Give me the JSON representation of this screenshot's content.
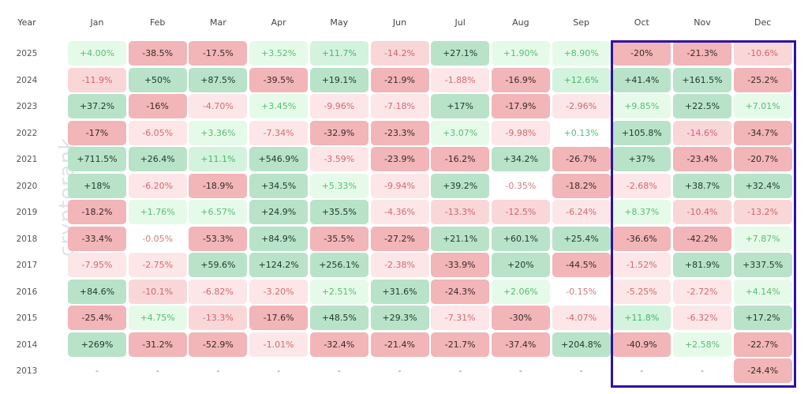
{
  "watermark": "cryptorank",
  "colors": {
    "strong_red": "#f2b5b8",
    "light_red": "#fce6e7",
    "strong_green": "#b8e3c9",
    "light_green": "#e6fae9",
    "highlight": "#2e13a3"
  },
  "chart_data": {
    "type": "heatmap",
    "title": "",
    "row_header": "Year",
    "columns": [
      "Jan",
      "Feb",
      "Mar",
      "Apr",
      "May",
      "Jun",
      "Jul",
      "Aug",
      "Sep",
      "Oct",
      "Nov",
      "Dec"
    ],
    "highlighted_columns": [
      "Oct",
      "Nov",
      "Dec"
    ],
    "rows": [
      {
        "year": "2025",
        "values": [
          "+4.00%",
          "-38.5%",
          "-17.5%",
          "+3.52%",
          "+11.7%",
          "-14.2%",
          "+27.1%",
          "+1.90%",
          "+8.90%",
          "-20%",
          "-21.3%",
          "-10.6%"
        ]
      },
      {
        "year": "2024",
        "values": [
          "-11.9%",
          "+50%",
          "+87.5%",
          "-39.5%",
          "+19.1%",
          "-21.9%",
          "-1.88%",
          "-16.9%",
          "+12.6%",
          "+41.4%",
          "+161.5%",
          "-25.2%"
        ]
      },
      {
        "year": "2023",
        "values": [
          "+37.2%",
          "-16%",
          "-4.70%",
          "+3.45%",
          "-9.96%",
          "-7.18%",
          "+17%",
          "-17.9%",
          "-2.96%",
          "+9.85%",
          "+22.5%",
          "+7.01%"
        ]
      },
      {
        "year": "2022",
        "values": [
          "-17%",
          "-6.05%",
          "+3.36%",
          "-7.34%",
          "-32.9%",
          "-23.3%",
          "+3.07%",
          "-9.98%",
          "+0.13%",
          "+105.8%",
          "-14.6%",
          "-34.7%"
        ]
      },
      {
        "year": "2021",
        "values": [
          "+711.5%",
          "+26.4%",
          "+11.1%",
          "+546.9%",
          "-3.59%",
          "-23.9%",
          "-16.2%",
          "+34.2%",
          "-26.7%",
          "+37%",
          "-23.4%",
          "-20.7%"
        ]
      },
      {
        "year": "2020",
        "values": [
          "+18%",
          "-6.20%",
          "-18.9%",
          "+34.5%",
          "+5.33%",
          "-9.94%",
          "+39.2%",
          "-0.35%",
          "-18.2%",
          "-2.68%",
          "+38.7%",
          "+32.4%"
        ]
      },
      {
        "year": "2019",
        "values": [
          "-18.2%",
          "+1.76%",
          "+6.57%",
          "+24.9%",
          "+35.5%",
          "-4.36%",
          "-13.3%",
          "-12.5%",
          "-6.24%",
          "+8.37%",
          "-10.4%",
          "-13.2%"
        ]
      },
      {
        "year": "2018",
        "values": [
          "-33.4%",
          "-0.05%",
          "-53.3%",
          "+84.9%",
          "-35.5%",
          "-27.2%",
          "+21.1%",
          "+60.1%",
          "+25.4%",
          "-36.6%",
          "-42.2%",
          "+7.87%"
        ]
      },
      {
        "year": "2017",
        "values": [
          "-7.95%",
          "-2.75%",
          "+59.6%",
          "+124.2%",
          "+256.1%",
          "-2.38%",
          "-33.9%",
          "+20%",
          "-44.5%",
          "-1.52%",
          "+81.9%",
          "+337.5%"
        ]
      },
      {
        "year": "2016",
        "values": [
          "+84.6%",
          "-10.1%",
          "-6.82%",
          "-3.20%",
          "+2.51%",
          "+31.6%",
          "-24.3%",
          "+2.06%",
          "-0.15%",
          "-5.25%",
          "-2.72%",
          "+4.14%"
        ]
      },
      {
        "year": "2015",
        "values": [
          "-25.4%",
          "+4.75%",
          "-13.3%",
          "-17.6%",
          "+48.5%",
          "+29.3%",
          "-7.31%",
          "-30%",
          "-4.07%",
          "+11.8%",
          "-6.32%",
          "+17.2%"
        ]
      },
      {
        "year": "2014",
        "values": [
          "+269%",
          "-31.2%",
          "-52.9%",
          "-1.01%",
          "-32.4%",
          "-21.4%",
          "-21.7%",
          "-37.4%",
          "+204.8%",
          "-40.9%",
          "+2.58%",
          "-22.7%"
        ]
      },
      {
        "year": "2013",
        "values": [
          "-",
          "-",
          "-",
          "-",
          "-",
          "-",
          "-",
          "-",
          "-",
          "-",
          "-",
          "-24.4%"
        ]
      }
    ]
  }
}
